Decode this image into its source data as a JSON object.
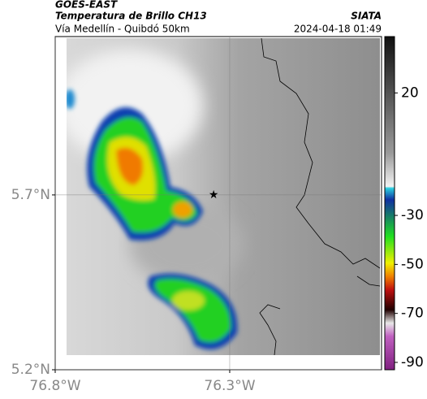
{
  "header": {
    "title": "GOES-EAST",
    "subtitle": "Temperatura de Brillo CH13",
    "source": "SIATA",
    "region": "Vía Medellín - Quibdó 50km",
    "timestamp": "2024-04-18 01:49"
  },
  "map": {
    "xlim": [
      -76.8,
      -75.865
    ],
    "ylim": [
      5.2,
      6.153
    ],
    "xticks": [
      {
        "value": -76.8,
        "label": "76.8°W"
      },
      {
        "value": -76.3,
        "label": "76.3°W"
      }
    ],
    "yticks": [
      {
        "value": 5.2,
        "label": "5.2°N"
      },
      {
        "value": 5.7,
        "label": "5.7°N"
      }
    ],
    "grid": true,
    "marker": {
      "lon": -76.346,
      "lat": 5.7
    }
  },
  "colorbar": {
    "lim": [
      -93,
      43
    ],
    "ticks": [
      20,
      -30,
      -50,
      -70,
      -90
    ]
  }
}
